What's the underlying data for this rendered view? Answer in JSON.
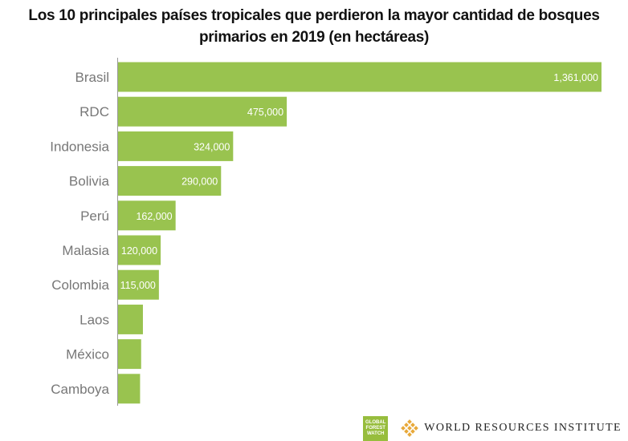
{
  "title": "Los 10 principales países tropicales que perdieron la mayor cantidad de bosques primarios en 2019 (en hectáreas)",
  "chart_data": {
    "type": "bar",
    "orientation": "horizontal",
    "title": "Los 10 principales países tropicales que perdieron la mayor cantidad de bosques primarios en 2019 (en hectáreas)",
    "categories": [
      "Brasil",
      "RDC",
      "Indonesia",
      "Bolivia",
      "Perú",
      "Malasia",
      "Colombia",
      "Laos",
      "México",
      "Camboya"
    ],
    "values": [
      1361000,
      475000,
      324000,
      290000,
      162000,
      120000,
      115000,
      70000,
      65000,
      62000
    ],
    "data_labels": [
      "1,361,000",
      "475,000",
      "324,000",
      "290,000",
      "162,000",
      "120,000",
      "115,000",
      "",
      "",
      ""
    ],
    "xlim": [
      0,
      1361000
    ],
    "grid": false,
    "bar_color": "#99c34f"
  },
  "logos": {
    "gfw": [
      "GLOBAL",
      "FOREST",
      "WATCH"
    ],
    "wri": "WORLD RESOURCES INSTITUTE"
  },
  "colors": {
    "bar": "#99c34f",
    "category_label": "#777777",
    "value_label": "#ffffff",
    "gfw_badge": "#97bd3d",
    "wri_mark": "#e8a93a"
  }
}
